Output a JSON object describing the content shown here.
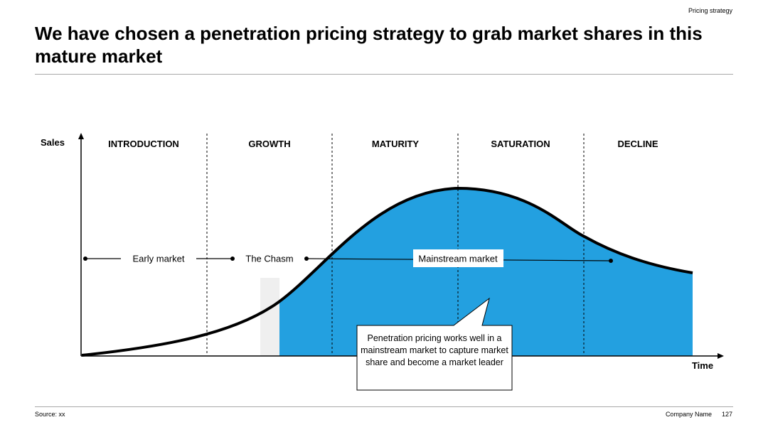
{
  "header": {
    "section_label": "Pricing strategy",
    "title": "We have chosen a penetration pricing strategy to grab market shares in this mature market"
  },
  "diagram": {
    "y_axis_label": "Sales",
    "x_axis_label": "Time",
    "stages": [
      "INTRODUCTION",
      "GROWTH",
      "MATURITY",
      "SATURATION",
      "DECLINE"
    ],
    "markets": {
      "early": "Early market",
      "chasm": "The Chasm",
      "mainstream": "Mainstream market"
    },
    "callout": "Penetration pricing works well in a mainstream market to capture market share and become a market leader",
    "colors": {
      "fill": "#23a0e0",
      "chasm": "#efefef",
      "curve": "#000000"
    }
  },
  "footer": {
    "source": "Source: xx",
    "company": "Company Name",
    "page": "127"
  }
}
